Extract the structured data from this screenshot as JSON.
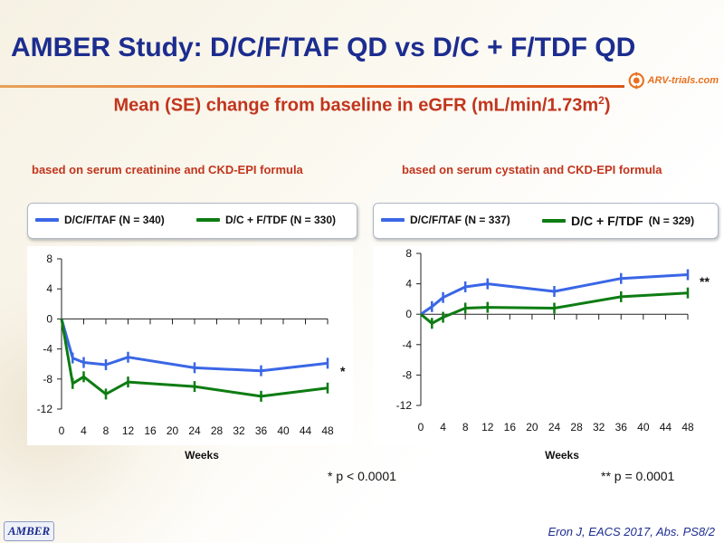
{
  "title": "AMBER Study: D/C/F/TAF QD vs D/C + F/TDF QD",
  "logo": {
    "text": "ARV-trials.com",
    "icon": "arv-trials-logo"
  },
  "subtitle": {
    "main": "Mean (SE) change from baseline in eGFR (mL/min/1.73m",
    "sup": "2",
    "close": ")"
  },
  "colors": {
    "blue": "#3a66e6",
    "green": "#0d7c12",
    "title": "#1c2d8f",
    "red": "#c1351d"
  },
  "chart_data": [
    {
      "type": "line",
      "title": "based on serum creatinine and CKD-EPI formula",
      "xlabel": "Weeks",
      "ylabel": "",
      "xlim": [
        0,
        48
      ],
      "ylim": [
        -12,
        8
      ],
      "x_ticks": [
        0,
        4,
        8,
        12,
        16,
        20,
        24,
        28,
        32,
        36,
        40,
        44,
        48
      ],
      "y_ticks": [
        8,
        4,
        0,
        -4,
        -8,
        -12
      ],
      "grid": false,
      "legend": "top",
      "significance_marker": "*",
      "pvalue_note": "* p < 0.0001",
      "series": [
        {
          "name": "D/C/F/TAF (N = 340)",
          "color": "#3a66e6",
          "x": [
            0,
            2,
            4,
            8,
            12,
            24,
            36,
            48
          ],
          "y": [
            0,
            -5.2,
            -5.8,
            -6.1,
            -5.1,
            -6.5,
            -6.9,
            -5.9
          ]
        },
        {
          "name": "D/C + F/TDF (N = 330)",
          "color": "#0d7c12",
          "x": [
            0,
            2,
            4,
            8,
            12,
            24,
            36,
            48
          ],
          "y": [
            0,
            -8.6,
            -7.7,
            -10.0,
            -8.4,
            -9.0,
            -10.3,
            -9.2
          ]
        }
      ]
    },
    {
      "type": "line",
      "title": "based on serum cystatin and CKD-EPI formula",
      "xlabel": "Weeks",
      "ylabel": "",
      "xlim": [
        0,
        48
      ],
      "ylim": [
        -12,
        8
      ],
      "x_ticks": [
        0,
        4,
        8,
        12,
        16,
        20,
        24,
        28,
        32,
        36,
        40,
        44,
        48
      ],
      "y_ticks": [
        8,
        4,
        0,
        -4,
        -8,
        -12
      ],
      "grid": false,
      "legend": "top",
      "significance_marker": "**",
      "pvalue_note": "** p = 0.0001",
      "series": [
        {
          "name": "D/C/F/TAF (N = 337)",
          "color": "#3a66e6",
          "x": [
            0,
            2,
            4,
            8,
            12,
            24,
            36,
            48
          ],
          "y": [
            0,
            1.0,
            2.2,
            3.6,
            4.0,
            3.0,
            4.7,
            5.2
          ]
        },
        {
          "name": "D/C + F/TDF (N = 329)",
          "color": "#0d7c12",
          "x": [
            0,
            2,
            4,
            8,
            12,
            24,
            36,
            48
          ],
          "y": [
            0,
            -1.2,
            -0.4,
            0.8,
            0.9,
            0.8,
            2.3,
            2.8
          ]
        }
      ]
    }
  ],
  "legend_labels": {
    "left_a": "D/C/F/TAF (N = 340)",
    "left_b": "D/C + F/TDF (N = 330)",
    "right_a": "D/C/F/TAF (N = 337)",
    "right_b_main": "D/C + F/TDF",
    "right_b_n": "(N = 329)"
  },
  "footer": {
    "badge": "AMBER",
    "citation": "Eron J, EACS 2017, Abs. PS8/2"
  }
}
